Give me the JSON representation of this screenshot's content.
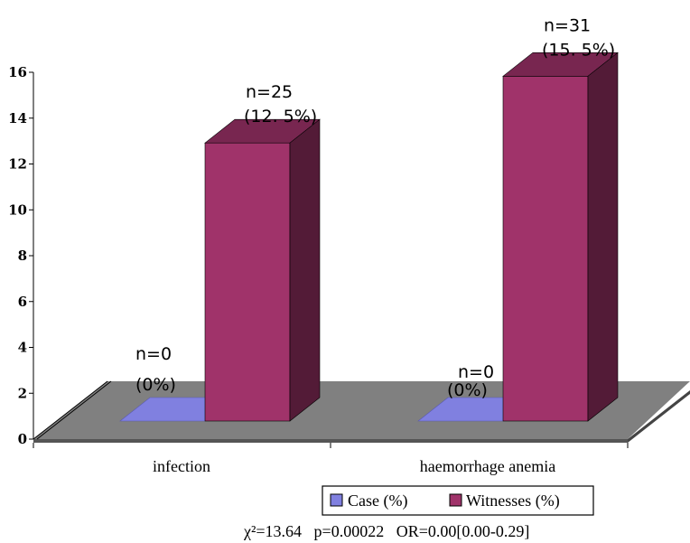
{
  "chart_data": {
    "type": "bar",
    "style": "3d-column",
    "categories": [
      "infection",
      "haemorrhage anemia"
    ],
    "series": [
      {
        "name": "Case (%)",
        "values": [
          0,
          0
        ],
        "color": "#8080e0"
      },
      {
        "name": "Witnesses (%)",
        "values": [
          12.5,
          15.5
        ],
        "color": "#a0336a"
      }
    ],
    "data_labels": [
      [
        {
          "n": "n=0",
          "pct": "(0%)"
        },
        {
          "n": "n=25",
          "pct": "(12. 5%)"
        }
      ],
      [
        {
          "n": "n=0",
          "pct": "(0%)"
        },
        {
          "n": "n=31",
          "pct": "(15. 5%)"
        }
      ]
    ],
    "ylim": [
      0,
      16
    ],
    "yticks": [
      0,
      2,
      4,
      6,
      8,
      10,
      12,
      14,
      16
    ],
    "floor_color": "#808080",
    "grid": false,
    "legend_position": "bottom",
    "stats_line": "χ²=13.64   p=0.00022   OR=0.00[0.00-0.29]"
  }
}
